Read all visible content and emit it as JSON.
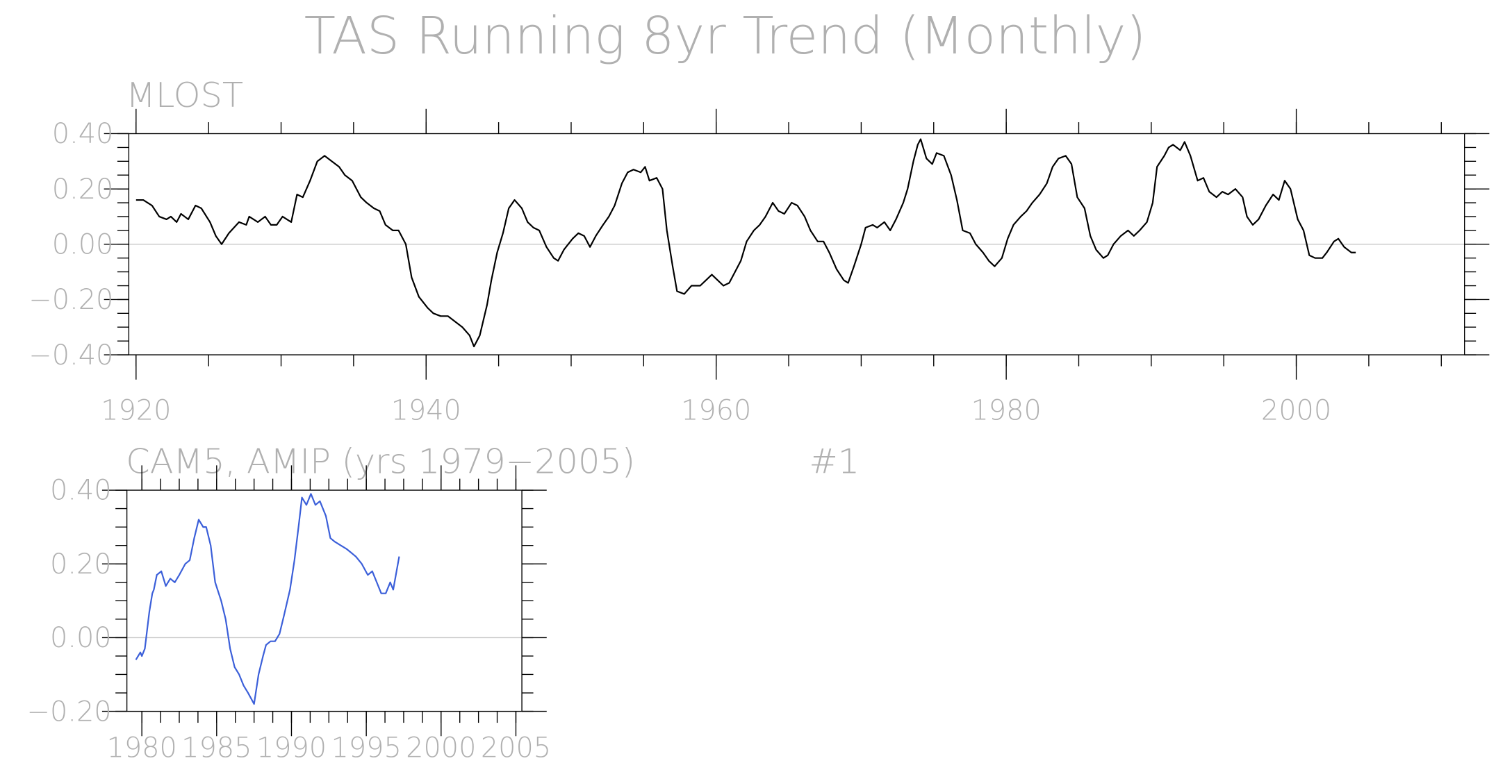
{
  "chart_data": [
    {
      "type": "line",
      "title": "TAS Running 8yr Trend (Monthly)",
      "subtitle": "MLOST",
      "x": [
        1920.0,
        1920.5,
        1921.1,
        1921.6,
        1922.1,
        1922.4,
        1922.8,
        1923.1,
        1923.6,
        1924.1,
        1924.5,
        1925.1,
        1925.5,
        1925.9,
        1926.4,
        1927.1,
        1927.6,
        1927.8,
        1928.4,
        1928.9,
        1929.3,
        1929.7,
        1930.1,
        1930.7,
        1931.1,
        1931.5,
        1932.0,
        1932.5,
        1933.0,
        1933.5,
        1934.0,
        1934.4,
        1934.9,
        1935.5,
        1935.9,
        1936.4,
        1936.8,
        1937.2,
        1937.7,
        1938.1,
        1938.6,
        1939.0,
        1939.5,
        1940.1,
        1940.5,
        1941.0,
        1941.5,
        1942.0,
        1942.5,
        1943.0,
        1943.3,
        1943.7,
        1944.2,
        1944.5,
        1944.9,
        1945.3,
        1945.7,
        1946.1,
        1946.6,
        1947.0,
        1947.4,
        1947.8,
        1948.3,
        1948.8,
        1949.1,
        1949.5,
        1950.1,
        1950.5,
        1950.9,
        1951.3,
        1951.7,
        1952.2,
        1952.6,
        1953.0,
        1953.5,
        1953.9,
        1954.3,
        1954.8,
        1955.1,
        1955.4,
        1955.9,
        1956.3,
        1956.6,
        1957.0,
        1957.3,
        1957.8,
        1958.3,
        1958.9,
        1959.3,
        1959.7,
        1960.1,
        1960.5,
        1960.9,
        1961.3,
        1961.7,
        1962.1,
        1962.6,
        1963.0,
        1963.4,
        1963.9,
        1964.3,
        1964.7,
        1965.2,
        1965.6,
        1966.1,
        1966.5,
        1967.0,
        1967.4,
        1967.8,
        1968.3,
        1968.8,
        1969.1,
        1969.5,
        1970.0,
        1970.3,
        1970.8,
        1971.1,
        1971.6,
        1972.0,
        1972.4,
        1972.9,
        1973.2,
        1973.6,
        1973.9,
        1974.1,
        1974.5,
        1974.9,
        1975.2,
        1975.7,
        1976.2,
        1976.6,
        1977.0,
        1977.5,
        1977.9,
        1978.4,
        1978.8,
        1979.2,
        1979.7,
        1980.1,
        1980.5,
        1981.0,
        1981.4,
        1981.8,
        1982.3,
        1982.8,
        1983.2,
        1983.6,
        1984.1,
        1984.5,
        1984.9,
        1985.4,
        1985.8,
        1986.2,
        1986.7,
        1987.0,
        1987.4,
        1987.9,
        1988.4,
        1988.8,
        1989.2,
        1989.7,
        1990.1,
        1990.4,
        1990.9,
        1991.2,
        1991.5,
        1992.0,
        1992.3,
        1992.7,
        1993.2,
        1993.6,
        1994.0,
        1994.5,
        1994.9,
        1995.3,
        1995.8,
        1996.3,
        1996.6,
        1997.0,
        1997.4,
        1997.9,
        1998.4,
        1998.8,
        1999.2,
        1999.6,
        2000.1,
        2000.5,
        2000.9,
        2001.3,
        2001.8,
        2002.1,
        2002.6,
        2002.9,
        2003.3,
        2003.8,
        2004.1
      ],
      "series": [
        {
          "color": "#000000",
          "values": [
            0.16,
            0.16,
            0.14,
            0.1,
            0.09,
            0.1,
            0.08,
            0.11,
            0.09,
            0.14,
            0.13,
            0.08,
            0.03,
            0.0,
            0.04,
            0.08,
            0.07,
            0.1,
            0.08,
            0.1,
            0.07,
            0.07,
            0.1,
            0.08,
            0.18,
            0.17,
            0.23,
            0.3,
            0.32,
            0.3,
            0.28,
            0.25,
            0.23,
            0.17,
            0.15,
            0.13,
            0.12,
            0.07,
            0.05,
            0.05,
            0.0,
            -0.12,
            -0.19,
            -0.23,
            -0.25,
            -0.26,
            -0.26,
            -0.28,
            -0.3,
            -0.33,
            -0.37,
            -0.33,
            -0.22,
            -0.13,
            -0.03,
            0.04,
            0.13,
            0.16,
            0.13,
            0.08,
            0.06,
            0.05,
            -0.01,
            -0.05,
            -0.06,
            -0.02,
            0.02,
            0.04,
            0.03,
            -0.01,
            0.03,
            0.07,
            0.1,
            0.14,
            0.22,
            0.26,
            0.27,
            0.26,
            0.28,
            0.23,
            0.24,
            0.2,
            0.05,
            -0.08,
            -0.17,
            -0.18,
            -0.15,
            -0.15,
            -0.13,
            -0.11,
            -0.13,
            -0.15,
            -0.14,
            -0.1,
            -0.06,
            0.01,
            0.05,
            0.07,
            0.1,
            0.15,
            0.12,
            0.11,
            0.15,
            0.14,
            0.1,
            0.05,
            0.01,
            0.01,
            -0.03,
            -0.09,
            -0.13,
            -0.14,
            -0.08,
            0.0,
            0.06,
            0.07,
            0.06,
            0.08,
            0.05,
            0.09,
            0.15,
            0.2,
            0.3,
            0.36,
            0.38,
            0.31,
            0.29,
            0.33,
            0.32,
            0.25,
            0.16,
            0.05,
            0.04,
            0.0,
            -0.03,
            -0.06,
            -0.08,
            -0.05,
            0.02,
            0.07,
            0.1,
            0.12,
            0.15,
            0.18,
            0.22,
            0.28,
            0.31,
            0.32,
            0.29,
            0.17,
            0.13,
            0.03,
            -0.02,
            -0.05,
            -0.04,
            0.0,
            0.03,
            0.05,
            0.03,
            0.05,
            0.08,
            0.15,
            0.28,
            0.32,
            0.35,
            0.36,
            0.34,
            0.37,
            0.32,
            0.23,
            0.24,
            0.19,
            0.17,
            0.19,
            0.18,
            0.2,
            0.17,
            0.1,
            0.07,
            0.09,
            0.14,
            0.18,
            0.16,
            0.23,
            0.2,
            0.09,
            0.05,
            -0.04,
            -0.05,
            -0.05,
            -0.03,
            0.01,
            0.02,
            -0.01,
            -0.03,
            -0.03
          ]
        }
      ],
      "xlim": [
        1919.5,
        2011.6
      ],
      "xticks": [
        1920,
        1940,
        1960,
        1980,
        2000
      ],
      "ylim": [
        -0.4,
        0.4
      ],
      "yticks": [
        {
          "value": -0.4,
          "label": "−0.40"
        },
        {
          "value": -0.2,
          "label": "−0.20"
        },
        {
          "value": 0,
          "label": "0.00"
        },
        {
          "value": 0.2,
          "label": "0.20"
        },
        {
          "value": 0.4,
          "label": "0.40"
        }
      ]
    },
    {
      "type": "line",
      "subtitle": "CAM5, AMIP (yrs 1979−2005)",
      "annotation": "#1",
      "x": [
        1979.6,
        1979.9,
        1980.0,
        1980.2,
        1980.5,
        1980.7,
        1980.8,
        1981.0,
        1981.3,
        1981.6,
        1981.9,
        1982.2,
        1982.5,
        1982.9,
        1983.2,
        1983.5,
        1983.8,
        1984.1,
        1984.3,
        1984.6,
        1984.9,
        1985.3,
        1985.6,
        1985.9,
        1986.2,
        1986.5,
        1986.8,
        1987.1,
        1987.5,
        1987.8,
        1988.1,
        1988.3,
        1988.6,
        1988.9,
        1989.2,
        1989.5,
        1989.9,
        1990.2,
        1990.5,
        1990.7,
        1991.0,
        1991.3,
        1991.6,
        1991.9,
        1992.3,
        1992.6,
        1992.9,
        1993.3,
        1993.7,
        1994.0,
        1994.3,
        1994.7,
        1995.1,
        1995.4,
        1995.7,
        1996.0,
        1996.3,
        1996.6,
        1996.8,
        1997.2
      ],
      "series": [
        {
          "color": "#3b5fd9",
          "values": [
            -0.06,
            -0.04,
            -0.05,
            -0.03,
            0.07,
            0.12,
            0.13,
            0.17,
            0.18,
            0.14,
            0.16,
            0.15,
            0.17,
            0.2,
            0.21,
            0.27,
            0.32,
            0.3,
            0.3,
            0.25,
            0.15,
            0.1,
            0.05,
            -0.03,
            -0.08,
            -0.1,
            -0.13,
            -0.15,
            -0.18,
            -0.1,
            -0.05,
            -0.02,
            -0.01,
            -0.01,
            0.01,
            0.06,
            0.13,
            0.21,
            0.31,
            0.38,
            0.36,
            0.39,
            0.36,
            0.37,
            0.33,
            0.27,
            0.26,
            0.25,
            0.24,
            0.23,
            0.22,
            0.2,
            0.17,
            0.18,
            0.15,
            0.12,
            0.12,
            0.15,
            0.13,
            0.22
          ]
        }
      ],
      "xlim": [
        1979,
        2005.4
      ],
      "xticks": [
        1980,
        1985,
        1990,
        1995,
        2000,
        2005
      ],
      "ylim": [
        -0.2,
        0.4
      ],
      "yticks": [
        {
          "value": -0.2,
          "label": "−0.20"
        },
        {
          "value": 0,
          "label": "0.00"
        },
        {
          "value": 0.2,
          "label": "0.20"
        },
        {
          "value": 0.4,
          "label": "0.40"
        }
      ]
    }
  ]
}
